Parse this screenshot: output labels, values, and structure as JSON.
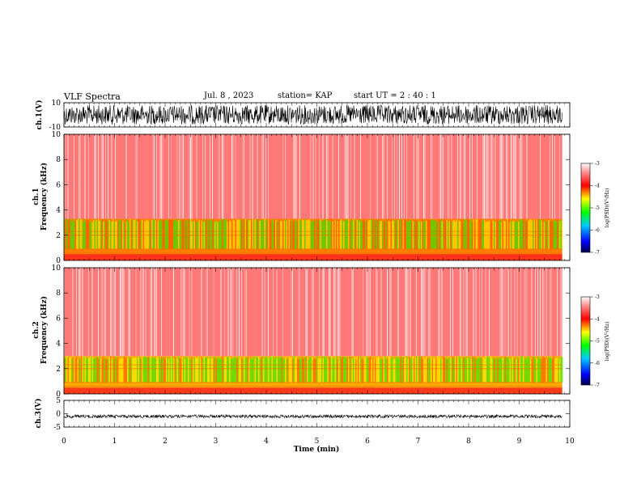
{
  "header": {
    "title": "VLF Spectra",
    "date": "Jul. 8 , 2023",
    "station": "station= KAP",
    "start": "start UT = 2 : 40 : 1"
  },
  "chart_data": [
    {
      "type": "line",
      "panel": "ch1-waveform",
      "ylabel": "ch.1(V)",
      "ylim": [
        -10,
        10
      ],
      "xlim": [
        0,
        10
      ],
      "yticks": [
        "10",
        "-10"
      ],
      "note_values": "dense noisy waveform spanning roughly -9 to +9 V, data ends near 9.85 min"
    },
    {
      "type": "heatmap",
      "panel": "ch1-spectrogram",
      "ylabel": "ch.1 Frequency (kHz)",
      "ylim": [
        0,
        10
      ],
      "yticks": [
        "0",
        "2",
        "4",
        "6",
        "8",
        "10"
      ],
      "xlim": [
        0,
        10
      ],
      "data_end_min": 9.85,
      "bands": [
        {
          "from_khz": 0,
          "to_khz": 3.3,
          "log_psd": -4.3
        },
        {
          "from_khz": 3.3,
          "to_khz": 10,
          "log_psd": -3.5
        }
      ],
      "colorbar": {
        "label": "log(PSD)(V²/Hz)",
        "min": -7,
        "max": -3,
        "ticks": [
          "-3",
          "-4",
          "-5",
          "-6",
          "-7"
        ]
      }
    },
    {
      "type": "heatmap",
      "panel": "ch2-spectrogram",
      "ylabel": "ch.2 Frequency (kHz)",
      "ylim": [
        0,
        10
      ],
      "yticks": [
        "0",
        "2",
        "4",
        "6",
        "8",
        "10"
      ],
      "xlim": [
        0,
        10
      ],
      "data_end_min": 9.85,
      "bands": [
        {
          "from_khz": 0,
          "to_khz": 3.0,
          "log_psd": -4.4
        },
        {
          "from_khz": 3.0,
          "to_khz": 10,
          "log_psd": -3.5
        }
      ],
      "colorbar": {
        "label": "log(PSD)(V²/Hz)",
        "min": -7,
        "max": -3,
        "ticks": [
          "-3",
          "-4",
          "-5",
          "-6",
          "-7"
        ]
      }
    },
    {
      "type": "line",
      "panel": "ch3-waveform",
      "ylabel": "ch.3(V)",
      "ylim": [
        -5,
        5
      ],
      "xlim": [
        0,
        10
      ],
      "yticks": [
        "5",
        "0",
        "-5"
      ],
      "xlabel": "Time (min)",
      "xticks": [
        "0",
        "1",
        "2",
        "3",
        "4",
        "5",
        "6",
        "7",
        "8",
        "9",
        "10"
      ],
      "note_values": "thin band around -1 V, data ends near 9.85 min"
    }
  ]
}
